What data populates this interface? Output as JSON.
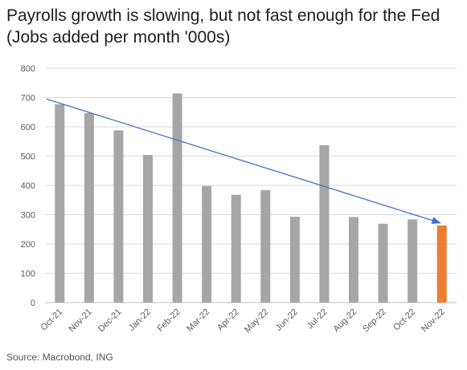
{
  "title": "Payrolls growth is slowing, but not fast enough for the Fed",
  "subtitle": "(Jobs added per month '000s)",
  "source": "Source: Macrobond, ING",
  "colors": {
    "bar": "#a6a6a6",
    "highlight": "#ed7d31",
    "trend": "#4472c4",
    "grid": "#d9d9d9",
    "axis_text": "#595959"
  },
  "chart_data": {
    "type": "bar",
    "categories": [
      "Oct-21",
      "Nov-21",
      "Dec-21",
      "Jan-22",
      "Feb-22",
      "Mar-22",
      "Apr-22",
      "May-22",
      "Jun-22",
      "Jul-22",
      "Aug-22",
      "Sep-22",
      "Oct-22",
      "Nov-22"
    ],
    "values": [
      677,
      647,
      588,
      504,
      714,
      398,
      368,
      384,
      293,
      537,
      292,
      269,
      284,
      263
    ],
    "highlight_index": 13,
    "ylim": [
      0,
      800
    ],
    "yticks": [
      0,
      100,
      200,
      300,
      400,
      500,
      600,
      700,
      800
    ],
    "grid": true,
    "trendline": {
      "x_from": "Oct-21",
      "y_from": 695,
      "x_to": "Nov-22",
      "y_to": 272,
      "arrow": true
    }
  }
}
